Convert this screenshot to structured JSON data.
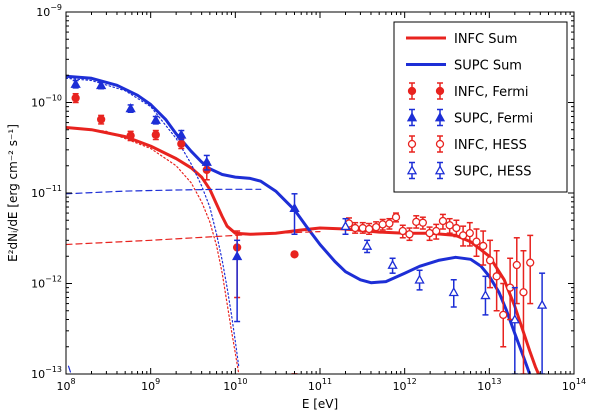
{
  "chart_data": {
    "type": "scatter",
    "xlabel": "E [eV]",
    "ylabel": "E²dNᵢ/dE [erg cm⁻² s⁻¹]",
    "x_log": true,
    "y_log": true,
    "xlim": [
      100000000.0,
      100000000000000.0
    ],
    "ylim": [
      1e-13,
      1e-09
    ],
    "x_ticks": [
      {
        "value": 100000000.0,
        "base": "10",
        "exp": "8"
      },
      {
        "value": 1000000000.0,
        "base": "10",
        "exp": "9"
      },
      {
        "value": 10000000000.0,
        "base": "10",
        "exp": "10"
      },
      {
        "value": 100000000000.0,
        "base": "10",
        "exp": "11"
      },
      {
        "value": 1000000000000.0,
        "base": "10",
        "exp": "12"
      },
      {
        "value": 10000000000000.0,
        "base": "10",
        "exp": "13"
      },
      {
        "value": 100000000000000.0,
        "base": "10",
        "exp": "14"
      }
    ],
    "y_ticks": [
      {
        "value": 1e-13,
        "base": "10",
        "exp": "−13"
      },
      {
        "value": 1e-12,
        "base": "10",
        "exp": "−12"
      },
      {
        "value": 1e-11,
        "base": "10",
        "exp": "−11"
      },
      {
        "value": 1e-10,
        "base": "10",
        "exp": "−10"
      },
      {
        "value": 1e-09,
        "base": "10",
        "exp": "−9"
      }
    ],
    "legend_position": "top-right",
    "colors": {
      "infc": "#e8231f",
      "supc": "#1d2ed6"
    },
    "lines": [
      {
        "name": "INFC Sum",
        "color": "#e8231f",
        "style": "solid",
        "legend": true,
        "points": [
          [
            100000000.0,
            5.3e-11
          ],
          [
            200000000.0,
            5e-11
          ],
          [
            500000000.0,
            4.2e-11
          ],
          [
            1000000000.0,
            3.3e-11
          ],
          [
            2000000000.0,
            2.4e-11
          ],
          [
            3000000000.0,
            1.9e-11
          ],
          [
            4000000000.0,
            1.5e-11
          ],
          [
            5000000000.0,
            1.1e-11
          ],
          [
            6000000000.0,
            7.5e-12
          ],
          [
            7000000000.0,
            5.5e-12
          ],
          [
            8000000000.0,
            4.3e-12
          ],
          [
            10000000000.0,
            3.6e-12
          ],
          [
            15000000000.0,
            3.5e-12
          ],
          [
            30000000000.0,
            3.6e-12
          ],
          [
            60000000000.0,
            3.9e-12
          ],
          [
            100000000000.0,
            4.1e-12
          ],
          [
            200000000000.0,
            4e-12
          ],
          [
            500000000000.0,
            3.7e-12
          ],
          [
            1000000000000.0,
            3.6e-12
          ],
          [
            2000000000000.0,
            3.6e-12
          ],
          [
            4000000000000.0,
            3.4e-12
          ],
          [
            6000000000000.0,
            2.9e-12
          ],
          [
            10000000000000.0,
            2e-12
          ],
          [
            15000000000000.0,
            1.1e-12
          ],
          [
            20000000000000.0,
            5.6e-13
          ],
          [
            25000000000000.0,
            3e-13
          ],
          [
            30000000000000.0,
            1.8e-13
          ],
          [
            35000000000000.0,
            1.2e-13
          ],
          [
            40000000000000.0,
            9e-14
          ]
        ]
      },
      {
        "name": "SUPC Sum",
        "color": "#1d2ed6",
        "style": "solid",
        "legend": true,
        "points": [
          [
            100000000.0,
            1.95e-10
          ],
          [
            200000000.0,
            1.85e-10
          ],
          [
            400000000.0,
            1.55e-10
          ],
          [
            700000000.0,
            1.2e-10
          ],
          [
            1000000000.0,
            9.5e-11
          ],
          [
            1500000000.0,
            6.5e-11
          ],
          [
            2000000000.0,
            4.5e-11
          ],
          [
            3000000000.0,
            2.9e-11
          ],
          [
            4000000000.0,
            2.2e-11
          ],
          [
            5000000000.0,
            1.85e-11
          ],
          [
            7000000000.0,
            1.6e-11
          ],
          [
            10000000000.0,
            1.5e-11
          ],
          [
            15000000000.0,
            1.45e-11
          ],
          [
            20000000000.0,
            1.35e-11
          ],
          [
            30000000000.0,
            1.05e-11
          ],
          [
            50000000000.0,
            6.5e-12
          ],
          [
            70000000000.0,
            4.2e-12
          ],
          [
            100000000000.0,
            2.7e-12
          ],
          [
            150000000000.0,
            1.75e-12
          ],
          [
            200000000000.0,
            1.35e-12
          ],
          [
            300000000000.0,
            1.1e-12
          ],
          [
            400000000000.0,
            1.02e-12
          ],
          [
            600000000000.0,
            1.05e-12
          ],
          [
            1000000000000.0,
            1.3e-12
          ],
          [
            1500000000000.0,
            1.55e-12
          ],
          [
            2500000000000.0,
            1.8e-12
          ],
          [
            4000000000000.0,
            1.95e-12
          ],
          [
            6000000000000.0,
            1.85e-12
          ],
          [
            8000000000000.0,
            1.55e-12
          ],
          [
            10000000000000.0,
            1.2e-12
          ],
          [
            13000000000000.0,
            8e-13
          ],
          [
            16000000000000.0,
            5e-13
          ],
          [
            20000000000000.0,
            2.8e-13
          ],
          [
            25000000000000.0,
            1.6e-13
          ],
          [
            30000000000000.0,
            1e-13
          ]
        ]
      },
      {
        "name": "INFC pi0",
        "color": "#e8231f",
        "style": "dotted",
        "legend": false,
        "points": [
          [
            100000000.0,
            5.3e-11
          ],
          [
            300000000.0,
            4.8e-11
          ],
          [
            1000000000.0,
            3.1e-11
          ],
          [
            2000000000.0,
            2e-11
          ],
          [
            3000000000.0,
            1.3e-11
          ],
          [
            4000000000.0,
            8e-12
          ],
          [
            5000000000.0,
            4.8e-12
          ],
          [
            6000000000.0,
            2.6e-12
          ],
          [
            7000000000.0,
            1.3e-12
          ],
          [
            8000000000.0,
            6e-13
          ],
          [
            9000000000.0,
            3e-13
          ],
          [
            10000000000.0,
            1.7e-13
          ],
          [
            11000000000.0,
            1e-13
          ]
        ]
      },
      {
        "name": "SUPC pi0",
        "color": "#1d2ed6",
        "style": "dotted",
        "legend": false,
        "points": [
          [
            100000000.0,
            1.85e-10
          ],
          [
            200000000.0,
            1.75e-10
          ],
          [
            500000000.0,
            1.35e-10
          ],
          [
            1000000000.0,
            9e-11
          ],
          [
            2000000000.0,
            4e-11
          ],
          [
            3000000000.0,
            2.1e-11
          ],
          [
            4000000000.0,
            1.2e-11
          ],
          [
            5000000000.0,
            7e-12
          ],
          [
            6000000000.0,
            3.5e-12
          ],
          [
            7000000000.0,
            1.8e-12
          ],
          [
            8000000000.0,
            9e-13
          ],
          [
            9000000000.0,
            4.5e-13
          ],
          [
            10000000000.0,
            2.3e-13
          ],
          [
            11000000000.0,
            1.2e-13
          ]
        ]
      },
      {
        "name": "INFC IC",
        "color": "#e8231f",
        "style": "dashed",
        "legend": false,
        "points": [
          [
            100000000.0,
            2.7e-12
          ],
          [
            1000000000.0,
            3e-12
          ],
          [
            10000000000.0,
            3.4e-12
          ],
          [
            30000000000.0,
            3.6e-12
          ],
          [
            100000000000.0,
            3.75e-12
          ]
        ]
      },
      {
        "name": "SUPC IC",
        "color": "#1d2ed6",
        "style": "dashed",
        "legend": false,
        "points": [
          [
            100000000.0,
            9.8e-12
          ],
          [
            500000000.0,
            1.05e-11
          ],
          [
            2000000000.0,
            1.08e-11
          ],
          [
            7000000000.0,
            1.1e-11
          ],
          [
            20000000000.0,
            1.1e-11
          ]
        ]
      },
      {
        "name": "low-energy",
        "color": "#1d2ed6",
        "style": "dashed",
        "legend": false,
        "points": [
          [
            107000000.0,
            1.22e-13
          ],
          [
            113000000.0,
            1.05e-13
          ]
        ]
      }
    ],
    "series": [
      {
        "name": "INFC, Fermi",
        "color": "#e8231f",
        "marker": "circle",
        "filled": true,
        "points": [
          {
            "x": 130000000.0,
            "y": 1.12e-10,
            "ylo": 1e-10,
            "yhi": 1.25e-10
          },
          {
            "x": 260000000.0,
            "y": 6.5e-11,
            "ylo": 5.8e-11,
            "yhi": 7.2e-11
          },
          {
            "x": 580000000.0,
            "y": 4.3e-11,
            "ylo": 3.8e-11,
            "yhi": 4.8e-11
          },
          {
            "x": 1150000000.0,
            "y": 4.4e-11,
            "ylo": 3.9e-11,
            "yhi": 4.9e-11
          },
          {
            "x": 2300000000.0,
            "y": 3.5e-11,
            "ylo": 3.1e-11,
            "yhi": 4e-11
          },
          {
            "x": 4600000000.0,
            "y": 1.8e-11,
            "ylo": 1.4e-11,
            "yhi": 2.2e-11
          },
          {
            "x": 10500000000.0,
            "y": 2.5e-12,
            "ylo": 7e-13,
            "yhi": 3.8e-12
          },
          {
            "x": 50000000000.0,
            "y": 2.1e-12,
            "ylo": 1e-13,
            "yhi": 1e-13
          }
        ]
      },
      {
        "name": "SUPC, Fermi",
        "color": "#1d2ed6",
        "marker": "triangle",
        "filled": true,
        "points": [
          {
            "x": 130000000.0,
            "y": 1.6e-10,
            "ylo": 1.45e-10,
            "yhi": 1.75e-10
          },
          {
            "x": 260000000.0,
            "y": 1.55e-10,
            "ylo": 1.42e-10,
            "yhi": 1.68e-10
          },
          {
            "x": 580000000.0,
            "y": 8.6e-11,
            "ylo": 7.8e-11,
            "yhi": 9.4e-11
          },
          {
            "x": 1150000000.0,
            "y": 6.4e-11,
            "ylo": 5.8e-11,
            "yhi": 7e-11
          },
          {
            "x": 2300000000.0,
            "y": 4.4e-11,
            "ylo": 3.9e-11,
            "yhi": 4.9e-11
          },
          {
            "x": 4600000000.0,
            "y": 2.2e-11,
            "ylo": 1.8e-11,
            "yhi": 2.6e-11
          },
          {
            "x": 10500000000.0,
            "y": 2e-12,
            "ylo": 3.8e-13,
            "yhi": 3e-12
          },
          {
            "x": 50000000000.0,
            "y": 6.8e-12,
            "ylo": 3.5e-12,
            "yhi": 9.8e-12
          }
        ]
      },
      {
        "name": "INFC, HESS",
        "color": "#e8231f",
        "marker": "circle",
        "filled": false,
        "points": [
          {
            "x": 220000000000.0,
            "y": 4.6e-12,
            "ylo": 3.9e-12,
            "yhi": 5.3e-12
          },
          {
            "x": 260000000000.0,
            "y": 4.1e-12,
            "ylo": 3.6e-12,
            "yhi": 4.7e-12
          },
          {
            "x": 320000000000.0,
            "y": 4.1e-12,
            "ylo": 3.6e-12,
            "yhi": 4.7e-12
          },
          {
            "x": 380000000000.0,
            "y": 4e-12,
            "ylo": 3.5e-12,
            "yhi": 4.6e-12
          },
          {
            "x": 460000000000.0,
            "y": 4.2e-12,
            "ylo": 3.7e-12,
            "yhi": 4.8e-12
          },
          {
            "x": 550000000000.0,
            "y": 4.5e-12,
            "ylo": 3.9e-12,
            "yhi": 5.1e-12
          },
          {
            "x": 660000000000.0,
            "y": 4.6e-12,
            "ylo": 4e-12,
            "yhi": 5.2e-12
          },
          {
            "x": 790000000000.0,
            "y": 5.4e-12,
            "ylo": 4.8e-12,
            "yhi": 6e-12
          },
          {
            "x": 950000000000.0,
            "y": 3.8e-12,
            "ylo": 3.2e-12,
            "yhi": 4.4e-12
          },
          {
            "x": 1140000000000.0,
            "y": 3.5e-12,
            "ylo": 3e-12,
            "yhi": 4.1e-12
          },
          {
            "x": 1370000000000.0,
            "y": 4.8e-12,
            "ylo": 4.1e-12,
            "yhi": 5.6e-12
          },
          {
            "x": 1640000000000.0,
            "y": 4.7e-12,
            "ylo": 4e-12,
            "yhi": 5.4e-12
          },
          {
            "x": 1970000000000.0,
            "y": 3.6e-12,
            "ylo": 3e-12,
            "yhi": 4.2e-12
          },
          {
            "x": 2360000000000.0,
            "y": 3.8e-12,
            "ylo": 3.1e-12,
            "yhi": 4.5e-12
          },
          {
            "x": 2830000000000.0,
            "y": 4.9e-12,
            "ylo": 4e-12,
            "yhi": 5.8e-12
          },
          {
            "x": 3400000000000.0,
            "y": 4.4e-12,
            "ylo": 3.6e-12,
            "yhi": 5.2e-12
          },
          {
            "x": 4080000000000.0,
            "y": 4.1e-12,
            "ylo": 3.3e-12,
            "yhi": 5e-12
          },
          {
            "x": 4900000000000.0,
            "y": 3.4e-12,
            "ylo": 2.6e-12,
            "yhi": 4.3e-12
          },
          {
            "x": 5880000000000.0,
            "y": 3.6e-12,
            "ylo": 2.6e-12,
            "yhi": 4.7e-12
          },
          {
            "x": 7050000000000.0,
            "y": 2.9e-12,
            "ylo": 2e-12,
            "yhi": 4e-12
          },
          {
            "x": 8460000000000.0,
            "y": 2.6e-12,
            "ylo": 1.6e-12,
            "yhi": 3.8e-12
          },
          {
            "x": 10200000000000.0,
            "y": 1.8e-12,
            "ylo": 9e-13,
            "yhi": 3e-12
          },
          {
            "x": 12200000000000.0,
            "y": 1.2e-12,
            "ylo": 5e-13,
            "yhi": 2.3e-12
          },
          {
            "x": 14600000000000.0,
            "y": 4.5e-13,
            "ylo": 2e-13,
            "yhi": 1e-12
          },
          {
            "x": 17600000000000.0,
            "y": 9e-13,
            "ylo": 4e-13,
            "yhi": 1.9e-12
          },
          {
            "x": 21100000000000.0,
            "y": 1.6e-12,
            "ylo": 6e-13,
            "yhi": 3.2e-12
          },
          {
            "x": 25300000000000.0,
            "y": 8e-13,
            "ylo": 1e-13,
            "yhi": 2.3e-12
          },
          {
            "x": 30400000000000.0,
            "y": 1.7e-12,
            "ylo": 6e-13,
            "yhi": 3.4e-12
          }
        ]
      },
      {
        "name": "SUPC, HESS",
        "color": "#1d2ed6",
        "marker": "triangle",
        "filled": false,
        "points": [
          {
            "x": 200000000000.0,
            "y": 4.3e-12,
            "ylo": 3.5e-12,
            "yhi": 5.2e-12
          },
          {
            "x": 360000000000.0,
            "y": 2.6e-12,
            "ylo": 2.2e-12,
            "yhi": 3e-12
          },
          {
            "x": 720000000000.0,
            "y": 1.6e-12,
            "ylo": 1.3e-12,
            "yhi": 1.9e-12
          },
          {
            "x": 1500000000000.0,
            "y": 1.1e-12,
            "ylo": 8.5e-13,
            "yhi": 1.4e-12
          },
          {
            "x": 3800000000000.0,
            "y": 8e-13,
            "ylo": 5.5e-13,
            "yhi": 1.1e-12
          },
          {
            "x": 9000000000000.0,
            "y": 7.4e-13,
            "ylo": 4.5e-13,
            "yhi": 1.2e-12
          },
          {
            "x": 20000000000000.0,
            "y": 4e-13,
            "ylo": 1e-13,
            "yhi": 9e-13
          },
          {
            "x": 42000000000000.0,
            "y": 5.8e-13,
            "ylo": 1e-13,
            "yhi": 1.3e-12
          }
        ]
      }
    ]
  },
  "legend": {
    "items": [
      {
        "label": "INFC Sum",
        "kind": "line",
        "color": "#e8231f"
      },
      {
        "label": "SUPC Sum",
        "kind": "line",
        "color": "#1d2ed6"
      },
      {
        "label": "INFC, Fermi",
        "kind": "circle-filled",
        "color": "#e8231f"
      },
      {
        "label": "SUPC, Fermi",
        "kind": "triangle-filled",
        "color": "#1d2ed6"
      },
      {
        "label": "INFC, HESS",
        "kind": "circle-open",
        "color": "#e8231f"
      },
      {
        "label": "SUPC, HESS",
        "kind": "triangle-open",
        "color": "#1d2ed6"
      }
    ]
  }
}
